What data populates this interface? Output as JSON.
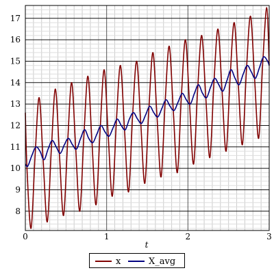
{
  "chart_data": {
    "type": "line",
    "title": "",
    "xlabel": "t",
    "ylabel": "",
    "xlim": [
      0,
      3
    ],
    "ylim": [
      7.1,
      17.6
    ],
    "x_ticks": [
      "0",
      "1",
      "2",
      "3"
    ],
    "y_ticks": [
      "8",
      "9",
      "10",
      "11",
      "12",
      "13",
      "14",
      "15",
      "16",
      "17"
    ],
    "grid": true,
    "legend_position": "bottom",
    "series": [
      {
        "name": "x",
        "color": "#800000",
        "x": [
          0.0,
          0.02,
          0.07,
          0.12,
          0.17,
          0.22,
          0.27,
          0.32,
          0.37,
          0.42,
          0.47,
          0.52,
          0.57,
          0.62,
          0.67,
          0.72,
          0.77,
          0.82,
          0.87,
          0.92,
          0.97,
          1.02,
          1.07,
          1.12,
          1.17,
          1.22,
          1.27,
          1.32,
          1.37,
          1.42,
          1.47,
          1.52,
          1.57,
          1.62,
          1.67,
          1.72,
          1.77,
          1.82,
          1.87,
          1.92,
          1.97,
          2.02,
          2.07,
          2.12,
          2.17,
          2.22,
          2.27,
          2.32,
          2.37,
          2.42,
          2.47,
          2.52,
          2.57,
          2.62,
          2.67,
          2.72,
          2.77,
          2.82,
          2.87,
          2.92,
          2.97,
          3.0
        ],
        "y": [
          12.6,
          10.0,
          7.2,
          10.6,
          13.3,
          10.3,
          7.5,
          10.9,
          13.7,
          10.6,
          7.8,
          11.2,
          14.0,
          10.9,
          8.0,
          11.5,
          14.3,
          11.2,
          8.3,
          11.8,
          14.6,
          11.5,
          8.7,
          12.2,
          14.8,
          11.8,
          8.9,
          12.5,
          15.0,
          12.1,
          9.3,
          12.8,
          15.4,
          12.4,
          9.6,
          13.1,
          15.7,
          12.7,
          9.8,
          13.4,
          16.0,
          13.0,
          10.2,
          13.7,
          16.2,
          13.3,
          10.5,
          14.0,
          16.5,
          13.6,
          10.8,
          14.3,
          16.8,
          13.9,
          11.1,
          14.6,
          17.1,
          14.2,
          11.4,
          14.9,
          17.5,
          14.8
        ]
      },
      {
        "name": "X_avg",
        "color": "#000080",
        "x": [
          0.0,
          0.03,
          0.08,
          0.13,
          0.18,
          0.23,
          0.28,
          0.33,
          0.38,
          0.43,
          0.48,
          0.53,
          0.58,
          0.63,
          0.68,
          0.73,
          0.78,
          0.83,
          0.88,
          0.93,
          0.98,
          1.03,
          1.08,
          1.13,
          1.18,
          1.23,
          1.28,
          1.33,
          1.38,
          1.43,
          1.48,
          1.53,
          1.58,
          1.63,
          1.68,
          1.73,
          1.78,
          1.83,
          1.88,
          1.93,
          1.98,
          2.03,
          2.08,
          2.13,
          2.18,
          2.23,
          2.28,
          2.33,
          2.38,
          2.43,
          2.48,
          2.53,
          2.58,
          2.63,
          2.68,
          2.73,
          2.78,
          2.83,
          2.88,
          2.93,
          2.98,
          3.0
        ],
        "y": [
          10.2,
          10.1,
          10.6,
          11.0,
          10.8,
          10.4,
          10.9,
          11.3,
          11.0,
          10.7,
          11.1,
          11.4,
          11.1,
          10.9,
          11.4,
          11.8,
          11.4,
          11.2,
          11.6,
          12.0,
          11.7,
          11.5,
          11.9,
          12.3,
          12.0,
          11.8,
          12.3,
          12.6,
          12.3,
          12.1,
          12.5,
          12.9,
          12.6,
          12.4,
          12.8,
          13.2,
          12.9,
          12.7,
          13.1,
          13.5,
          13.2,
          13.0,
          13.5,
          13.9,
          13.5,
          13.3,
          13.8,
          14.2,
          13.9,
          13.6,
          14.1,
          14.6,
          14.2,
          13.9,
          14.4,
          14.8,
          14.5,
          14.2,
          14.7,
          15.2,
          15.0,
          14.8
        ]
      }
    ]
  }
}
